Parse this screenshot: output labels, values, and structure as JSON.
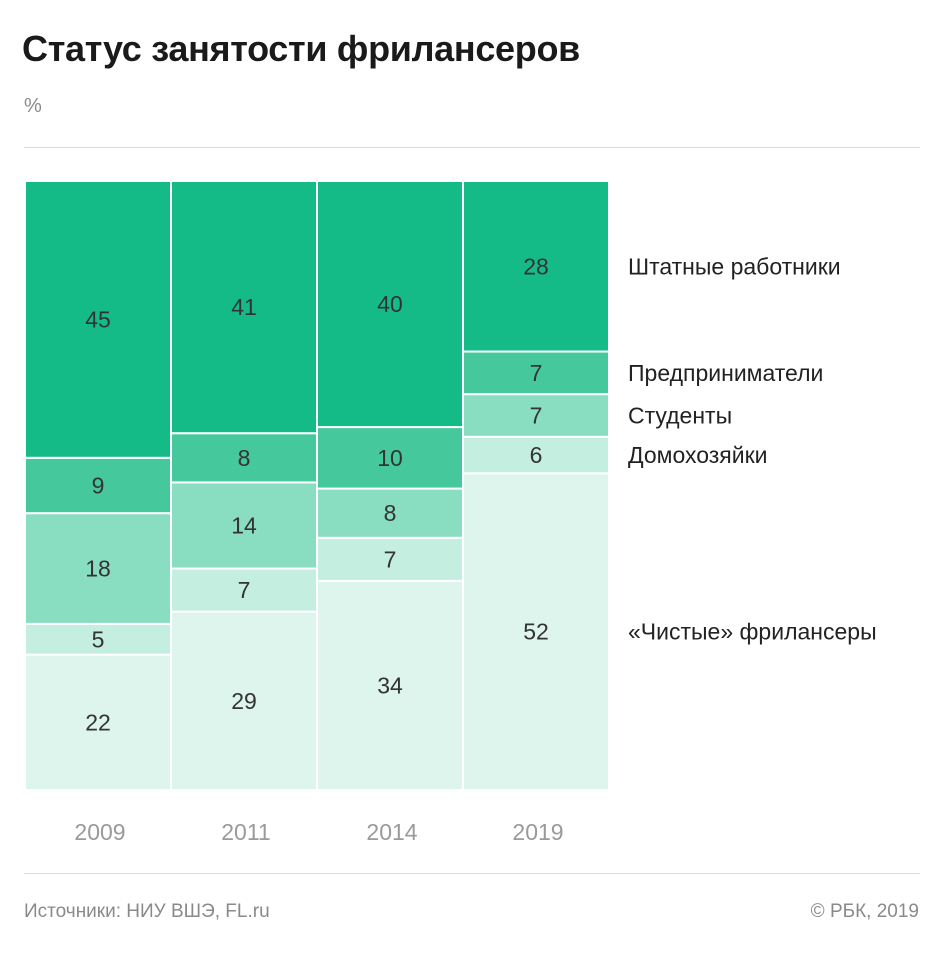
{
  "header": {
    "title": "Статус занятости фрилансеров",
    "unit": "%"
  },
  "footer": {
    "source": "Источники: НИУ ВШЭ, FL.ru",
    "copyright": "© РБК, 2019"
  },
  "colors": {
    "Штатные работники": "#14bb87",
    "Предприниматели": "#45c99c",
    "Студенты": "#89ddc0",
    "Домохозяйки": "#c4eedf",
    "«Чистые» фрилансеры": "#ddf5ec"
  },
  "chart_data": {
    "type": "bar",
    "stacked": true,
    "normalized": true,
    "title": "Статус занятости фрилансеров",
    "ylabel": "%",
    "categories": [
      "2009",
      "2011",
      "2014",
      "2019"
    ],
    "series": [
      {
        "name": "«Чистые» фрилансеры",
        "values": [
          22,
          29,
          34,
          52
        ]
      },
      {
        "name": "Домохозяйки",
        "values": [
          5,
          7,
          7,
          6
        ]
      },
      {
        "name": "Студенты",
        "values": [
          18,
          14,
          8,
          7
        ]
      },
      {
        "name": "Предприниматели",
        "values": [
          9,
          8,
          10,
          7
        ]
      },
      {
        "name": "Штатные работники",
        "values": [
          45,
          41,
          40,
          28
        ]
      }
    ],
    "legend": "right"
  }
}
